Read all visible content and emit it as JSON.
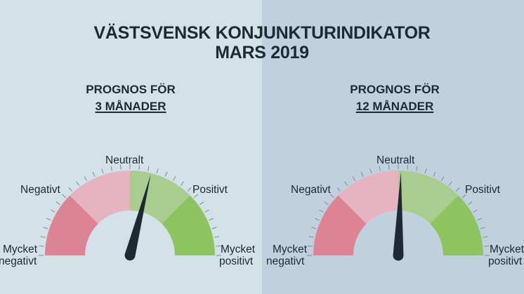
{
  "title": {
    "line1": "VÄSTSVENSK KONJUNKTURINDIKATOR",
    "line2": "MARS 2019"
  },
  "gauges": [
    {
      "heading": "PROGNOS FÖR",
      "period": "3 MÅNADER",
      "needle_value": 0.58,
      "labels": {
        "neutral": "Neutralt",
        "negative": "Negativt",
        "positive": "Positivt",
        "very_negative_1": "Mycket",
        "very_negative_2": "negativt",
        "very_positive_1": "Mycket",
        "very_positive_2": "positivt"
      }
    },
    {
      "heading": "PROGNOS FÖR",
      "period": "12 MÅNADER",
      "needle_value": 0.51,
      "labels": {
        "neutral": "Neutralt",
        "negative": "Negativt",
        "positive": "Positivt",
        "very_negative_1": "Mycket",
        "very_negative_2": "negativt",
        "very_positive_1": "Mycket",
        "very_positive_2": "positivt"
      }
    }
  ],
  "colors": {
    "very_negative": "#de8394",
    "negative": "#e6b4c1",
    "positive": "#a8cd8e",
    "very_positive": "#8dc460",
    "needle": "#1d2a33"
  }
}
